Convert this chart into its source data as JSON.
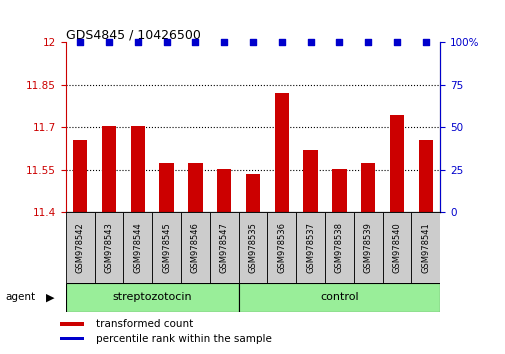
{
  "title": "GDS4845 / 10426500",
  "samples": [
    "GSM978542",
    "GSM978543",
    "GSM978544",
    "GSM978545",
    "GSM978546",
    "GSM978547",
    "GSM978535",
    "GSM978536",
    "GSM978537",
    "GSM978538",
    "GSM978539",
    "GSM978540",
    "GSM978541"
  ],
  "bar_values": [
    11.655,
    11.705,
    11.705,
    11.575,
    11.575,
    11.555,
    11.535,
    11.82,
    11.62,
    11.555,
    11.575,
    11.745,
    11.655
  ],
  "percentile_values": [
    100,
    100,
    100,
    100,
    100,
    100,
    100,
    100,
    100,
    100,
    100,
    100,
    100
  ],
  "bar_color": "#cc0000",
  "percentile_color": "#0000cc",
  "ylim_left": [
    11.4,
    12.0
  ],
  "ylim_right": [
    0,
    100
  ],
  "yticks_left": [
    11.4,
    11.55,
    11.7,
    11.85,
    12.0
  ],
  "ytick_labels_left": [
    "11.4",
    "11.55",
    "11.7",
    "11.85",
    "12"
  ],
  "yticks_right": [
    0,
    25,
    50,
    75,
    100
  ],
  "ytick_labels_right": [
    "0",
    "25",
    "50",
    "75",
    "100%"
  ],
  "group1_label": "streptozotocin",
  "group2_label": "control",
  "group1_count": 6,
  "group2_count": 7,
  "group_bg_color": "#99ee99",
  "agent_label": "agent",
  "legend1_label": "transformed count",
  "legend2_label": "percentile rank within the sample",
  "xticklabel_bg": "#cccccc",
  "bar_bottom": 11.4,
  "fig_width": 5.06,
  "fig_height": 3.54,
  "fig_dpi": 100
}
